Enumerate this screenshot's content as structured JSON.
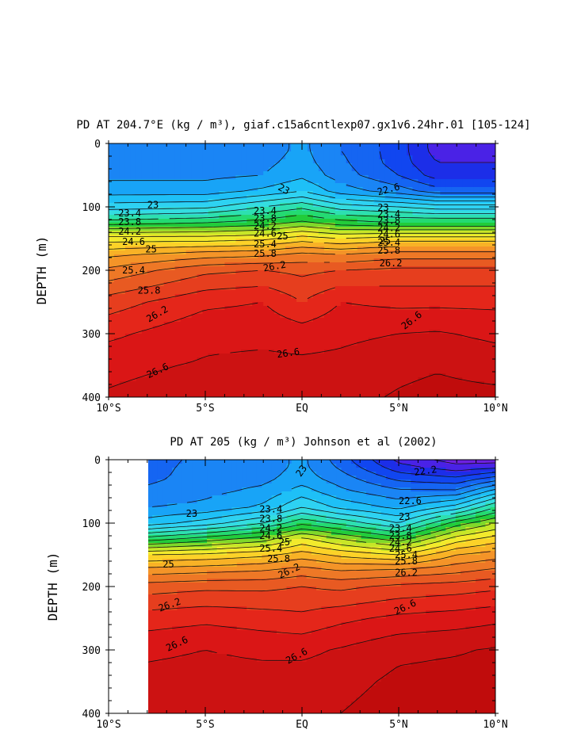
{
  "chart_data": [
    {
      "type": "heatmap",
      "title": "PD AT 204.7°E (kg / m³), giaf.c15a6cntlexp07.gx1v6.24hr.01 [105-124]",
      "ylabel": "DEPTH (m)",
      "xlabel": "",
      "x_tick_labels": [
        "10°S",
        "5°S",
        "EQ",
        "5°N",
        "10°N"
      ],
      "x_tick_values": [
        -10,
        -5,
        0,
        5,
        10
      ],
      "y_tick_labels": [
        "0",
        "100",
        "200",
        "300",
        "400"
      ],
      "y_tick_values": [
        0,
        100,
        200,
        300,
        400
      ],
      "xlim": [
        -10,
        10
      ],
      "ylim": [
        400,
        0
      ],
      "data_xlim": [
        -10,
        10
      ],
      "contour_interval": 0.2,
      "field_range": [
        21.8,
        27.0
      ],
      "field": {
        "lat_knots": [
          -10,
          -5,
          -2,
          0,
          2,
          5,
          7,
          10
        ],
        "depth": [
          0,
          10,
          30,
          50,
          75,
          100,
          125,
          150,
          175,
          200,
          250,
          300,
          350,
          400
        ],
        "values": [
          [
            22.9,
            22.9,
            22.9,
            23.05,
            22.8,
            22.5,
            22.1,
            22.1
          ],
          [
            22.9,
            22.9,
            22.9,
            23.05,
            22.8,
            22.5,
            22.1,
            22.1
          ],
          [
            22.9,
            22.9,
            22.95,
            23.08,
            22.85,
            22.5,
            22.2,
            22.2
          ],
          [
            22.95,
            22.95,
            23.0,
            23.15,
            22.9,
            22.6,
            22.3,
            22.3
          ],
          [
            23.1,
            23.1,
            23.25,
            23.4,
            23.1,
            22.9,
            22.7,
            22.7
          ],
          [
            23.5,
            23.55,
            23.8,
            23.95,
            23.7,
            23.6,
            23.5,
            23.5
          ],
          [
            24.1,
            24.2,
            24.3,
            24.45,
            24.3,
            24.2,
            24.2,
            24.2
          ],
          [
            24.9,
            24.9,
            24.95,
            25.1,
            25.0,
            25.1,
            25.1,
            25.1
          ],
          [
            25.35,
            25.5,
            25.55,
            25.65,
            25.6,
            25.7,
            25.7,
            25.7
          ],
          [
            25.65,
            25.95,
            26.0,
            25.95,
            26.0,
            26.05,
            26.05,
            26.05
          ],
          [
            26.1,
            26.35,
            26.4,
            26.2,
            26.4,
            26.35,
            26.35,
            26.35
          ],
          [
            26.35,
            26.55,
            26.55,
            26.5,
            26.55,
            26.6,
            26.62,
            26.55
          ],
          [
            26.55,
            26.62,
            26.65,
            26.65,
            26.66,
            26.75,
            26.78,
            26.72
          ],
          [
            26.62,
            26.7,
            26.72,
            26.73,
            26.74,
            26.82,
            26.86,
            26.85
          ]
        ]
      },
      "contour_labels": [
        {
          "text": "23",
          "lat": -8.0,
          "depth": 97,
          "angle": 0
        },
        {
          "text": "23.4",
          "lat": -9.5,
          "depth": 110,
          "angle": 0
        },
        {
          "text": "23.8",
          "lat": -9.5,
          "depth": 124,
          "angle": 0
        },
        {
          "text": "24.2",
          "lat": -9.5,
          "depth": 139,
          "angle": 0
        },
        {
          "text": "24.6",
          "lat": -9.3,
          "depth": 155,
          "angle": 0
        },
        {
          "text": "25",
          "lat": -8.1,
          "depth": 167,
          "angle": 0
        },
        {
          "text": "25.4",
          "lat": -9.3,
          "depth": 200,
          "angle": 0
        },
        {
          "text": "25.8",
          "lat": -8.5,
          "depth": 232,
          "angle": 0
        },
        {
          "text": "26.2",
          "lat": -8.0,
          "depth": 278,
          "angle": -30
        },
        {
          "text": "26.6",
          "lat": -8.0,
          "depth": 366,
          "angle": -25
        },
        {
          "text": "23",
          "lat": -1.2,
          "depth": 68,
          "angle": 28
        },
        {
          "text": "23.4",
          "lat": -2.5,
          "depth": 106,
          "angle": 0
        },
        {
          "text": "23.8",
          "lat": -2.5,
          "depth": 118,
          "angle": 0
        },
        {
          "text": "24.2",
          "lat": -2.5,
          "depth": 130,
          "angle": 0
        },
        {
          "text": "24.6",
          "lat": -2.5,
          "depth": 142,
          "angle": 0
        },
        {
          "text": "25",
          "lat": -1.3,
          "depth": 146,
          "angle": 0
        },
        {
          "text": "25.4",
          "lat": -2.5,
          "depth": 159,
          "angle": 0
        },
        {
          "text": "25.8",
          "lat": -2.5,
          "depth": 174,
          "angle": 0
        },
        {
          "text": "26.2",
          "lat": -2.0,
          "depth": 197,
          "angle": -10
        },
        {
          "text": "26.6",
          "lat": -1.3,
          "depth": 333,
          "angle": -8
        },
        {
          "text": "22.6",
          "lat": 3.9,
          "depth": 77,
          "angle": -15
        },
        {
          "text": "23",
          "lat": 3.9,
          "depth": 101,
          "angle": 0
        },
        {
          "text": "23.4",
          "lat": 3.9,
          "depth": 111,
          "angle": 0
        },
        {
          "text": "23.8",
          "lat": 3.9,
          "depth": 122,
          "angle": 0
        },
        {
          "text": "24.2",
          "lat": 3.9,
          "depth": 133,
          "angle": 0
        },
        {
          "text": "24.6",
          "lat": 3.9,
          "depth": 143,
          "angle": 0
        },
        {
          "text": "25",
          "lat": 4.0,
          "depth": 154,
          "angle": 0
        },
        {
          "text": "25.4",
          "lat": 3.9,
          "depth": 156,
          "angle": 0
        },
        {
          "text": "25.8",
          "lat": 3.9,
          "depth": 169,
          "angle": 0
        },
        {
          "text": "26.2",
          "lat": 4.0,
          "depth": 189,
          "angle": 0
        },
        {
          "text": "26.6",
          "lat": 5.2,
          "depth": 290,
          "angle": -38
        }
      ]
    },
    {
      "type": "heatmap",
      "title": "PD AT 205 (kg / m³) Johnson et al (2002)",
      "ylabel": "DEPTH (m)",
      "xlabel": "",
      "x_tick_labels": [
        "10°S",
        "5°S",
        "EQ",
        "5°N",
        "10°N"
      ],
      "x_tick_values": [
        -10,
        -5,
        0,
        5,
        10
      ],
      "y_tick_labels": [
        "0",
        "100",
        "200",
        "300",
        "400"
      ],
      "y_tick_values": [
        0,
        100,
        200,
        300,
        400
      ],
      "xlim": [
        -10,
        10
      ],
      "ylim": [
        400,
        0
      ],
      "data_xlim": [
        -8,
        10
      ],
      "contour_interval": 0.2,
      "field_range": [
        21.8,
        27.0
      ],
      "field": {
        "lat_knots": [
          -8,
          -5,
          -2,
          0,
          2,
          5,
          8,
          10
        ],
        "depth": [
          0,
          10,
          30,
          50,
          75,
          100,
          125,
          150,
          175,
          200,
          250,
          300,
          350,
          400
        ],
        "values": [
          [
            22.65,
            22.9,
            22.9,
            23.05,
            22.7,
            22.15,
            21.9,
            21.9
          ],
          [
            22.7,
            22.9,
            22.9,
            23.05,
            22.75,
            22.25,
            22.05,
            22.1
          ],
          [
            22.75,
            22.9,
            22.95,
            23.1,
            22.9,
            22.55,
            22.45,
            22.7
          ],
          [
            22.85,
            22.95,
            23.05,
            23.3,
            23.05,
            22.85,
            22.85,
            23.3
          ],
          [
            23.0,
            23.05,
            23.25,
            23.6,
            23.35,
            23.15,
            23.5,
            24.0
          ],
          [
            23.3,
            23.5,
            23.8,
            24.15,
            23.95,
            23.6,
            24.3,
            24.6
          ],
          [
            24.1,
            24.3,
            24.5,
            24.85,
            24.6,
            24.3,
            24.9,
            25.1
          ],
          [
            25.0,
            25.05,
            25.15,
            25.3,
            25.15,
            25.0,
            25.4,
            25.5
          ],
          [
            25.5,
            25.55,
            25.6,
            25.7,
            25.6,
            25.65,
            25.75,
            25.85
          ],
          [
            25.9,
            25.95,
            25.95,
            26.0,
            25.95,
            26.05,
            26.1,
            26.15
          ],
          [
            26.3,
            26.35,
            26.3,
            26.25,
            26.35,
            26.45,
            26.5,
            26.55
          ],
          [
            26.55,
            26.6,
            26.55,
            26.55,
            26.62,
            26.75,
            26.78,
            26.82
          ],
          [
            26.68,
            26.7,
            26.7,
            26.7,
            26.72,
            26.85,
            26.88,
            26.9
          ],
          [
            26.75,
            26.76,
            26.76,
            26.76,
            26.8,
            26.92,
            26.94,
            26.95
          ]
        ]
      },
      "contour_labels": [
        {
          "text": "23",
          "lat": -6.0,
          "depth": 85,
          "angle": 0
        },
        {
          "text": "23",
          "lat": -0.2,
          "depth": 25,
          "angle": -55
        },
        {
          "text": "23.4",
          "lat": -2.2,
          "depth": 78,
          "angle": 0
        },
        {
          "text": "23.8",
          "lat": -2.2,
          "depth": 93,
          "angle": 0
        },
        {
          "text": "24.2",
          "lat": -2.2,
          "depth": 108,
          "angle": 0
        },
        {
          "text": "24.6",
          "lat": -2.2,
          "depth": 120,
          "angle": 0
        },
        {
          "text": "25",
          "lat": -1.2,
          "depth": 130,
          "angle": 0
        },
        {
          "text": "25.4",
          "lat": -2.2,
          "depth": 140,
          "angle": 0
        },
        {
          "text": "25.8",
          "lat": -1.8,
          "depth": 156,
          "angle": 0
        },
        {
          "text": "25",
          "lat": -7.2,
          "depth": 165,
          "angle": 0
        },
        {
          "text": "26.2",
          "lat": -1.2,
          "depth": 183,
          "angle": -25
        },
        {
          "text": "26.2",
          "lat": -7.4,
          "depth": 235,
          "angle": -20
        },
        {
          "text": "26.6",
          "lat": -7.0,
          "depth": 298,
          "angle": -25
        },
        {
          "text": "26.6",
          "lat": -0.8,
          "depth": 318,
          "angle": -28
        },
        {
          "text": "22.2",
          "lat": 5.8,
          "depth": 20,
          "angle": -8
        },
        {
          "text": "22.6",
          "lat": 5.0,
          "depth": 65,
          "angle": 0
        },
        {
          "text": "23",
          "lat": 5.0,
          "depth": 90,
          "angle": 0
        },
        {
          "text": "23.4",
          "lat": 4.5,
          "depth": 108,
          "angle": 0
        },
        {
          "text": "23.8",
          "lat": 4.5,
          "depth": 120,
          "angle": 0
        },
        {
          "text": "24.2",
          "lat": 4.5,
          "depth": 130,
          "angle": 0
        },
        {
          "text": "24.6",
          "lat": 4.5,
          "depth": 140,
          "angle": 0
        },
        {
          "text": "25.4",
          "lat": 4.8,
          "depth": 150,
          "angle": 0
        },
        {
          "text": "25.8",
          "lat": 4.8,
          "depth": 160,
          "angle": 0
        },
        {
          "text": "26.2",
          "lat": 4.8,
          "depth": 178,
          "angle": 0
        },
        {
          "text": "26.6",
          "lat": 4.8,
          "depth": 240,
          "angle": -25
        }
      ]
    }
  ],
  "colors": {
    "levels": [
      21.8,
      22.0,
      22.2,
      22.4,
      22.6,
      22.8,
      23.0,
      23.2,
      23.4,
      23.6,
      23.8,
      24.0,
      24.2,
      24.4,
      24.6,
      24.8,
      25.0,
      25.2,
      25.4,
      25.6,
      25.8,
      26.0,
      26.2,
      26.4,
      26.6,
      26.8,
      27.0
    ],
    "fills": [
      "#6e20e0",
      "#4a22e6",
      "#1c2ee8",
      "#1146f0",
      "#1565f2",
      "#1a85f5",
      "#18a4f7",
      "#1ec0f7",
      "#2ed2f2",
      "#34dde0",
      "#2de0b0",
      "#24da72",
      "#22cc3a",
      "#80d82a",
      "#c8e628",
      "#f2ea2c",
      "#fcd228",
      "#f8b226",
      "#f49428",
      "#ee7826",
      "#e85a22",
      "#e63e1e",
      "#e4261a",
      "#da1616",
      "#cc1212",
      "#c00c0c"
    ]
  }
}
